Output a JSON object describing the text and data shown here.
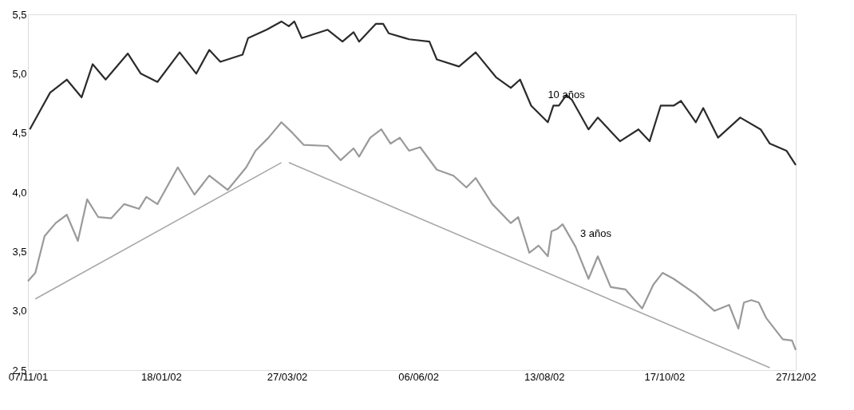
{
  "chart_data": {
    "type": "line",
    "xlim": [
      "2001-11-07",
      "2002-12-27"
    ],
    "xticks": [
      {
        "value": "2001-11-07",
        "label": "07/11/01"
      },
      {
        "value": "2002-01-18",
        "label": "18/01/02"
      },
      {
        "value": "2002-03-27",
        "label": "27/03/02"
      },
      {
        "value": "2002-06-06",
        "label": "06/06/02"
      },
      {
        "value": "2002-08-13",
        "label": "13/08/02"
      },
      {
        "value": "2002-10-17",
        "label": "17/10/02"
      },
      {
        "value": "2002-12-27",
        "label": "27/12/02"
      }
    ],
    "ylim": [
      2.5,
      5.5
    ],
    "yticks": [
      {
        "value": 2.5,
        "label": "2,5"
      },
      {
        "value": 3.0,
        "label": "3,0"
      },
      {
        "value": 3.5,
        "label": "3,5"
      },
      {
        "value": 4.0,
        "label": "4,0"
      },
      {
        "value": 4.5,
        "label": "4,5"
      },
      {
        "value": 5.0,
        "label": "5,0"
      },
      {
        "value": 5.5,
        "label": "5,5"
      }
    ],
    "grid": false,
    "marker": "none",
    "line_style": "solid",
    "series": [
      {
        "name": "10 años",
        "color": "#2b2b2b",
        "x": [
          "2001-11-08",
          "2001-11-14",
          "2001-11-19",
          "2001-11-28",
          "2001-12-06",
          "2001-12-12",
          "2001-12-19",
          "2001-12-31",
          "2002-01-07",
          "2002-01-16",
          "2002-01-28",
          "2002-02-06",
          "2002-02-13",
          "2002-02-19",
          "2002-03-03",
          "2002-03-06",
          "2002-03-16",
          "2002-03-24",
          "2002-03-28",
          "2002-03-31",
          "2002-04-04",
          "2002-04-18",
          "2002-04-26",
          "2002-05-02",
          "2002-05-05",
          "2002-05-14",
          "2002-05-18",
          "2002-05-21",
          "2002-06-01",
          "2002-06-12",
          "2002-06-16",
          "2002-06-28",
          "2002-07-07",
          "2002-07-18",
          "2002-07-26",
          "2002-07-31",
          "2002-08-06",
          "2002-08-15",
          "2002-08-18",
          "2002-08-21",
          "2002-08-25",
          "2002-08-28",
          "2002-09-06",
          "2002-09-11",
          "2002-09-23",
          "2002-10-03",
          "2002-10-09",
          "2002-10-15",
          "2002-10-22",
          "2002-10-26",
          "2002-11-03",
          "2002-11-07",
          "2002-11-15",
          "2002-11-27",
          "2002-12-08",
          "2002-12-13",
          "2002-12-22",
          "2002-12-27"
        ],
        "values": [
          4.53,
          4.7,
          4.84,
          4.95,
          4.8,
          5.08,
          4.95,
          5.17,
          5.0,
          4.93,
          5.18,
          5.0,
          5.2,
          5.1,
          5.16,
          5.3,
          5.37,
          5.44,
          5.4,
          5.44,
          5.3,
          5.37,
          5.27,
          5.35,
          5.27,
          5.42,
          5.42,
          5.34,
          5.29,
          5.27,
          5.12,
          5.06,
          5.18,
          4.97,
          4.88,
          4.95,
          4.73,
          4.59,
          4.73,
          4.73,
          4.82,
          4.78,
          4.53,
          4.63,
          4.43,
          4.53,
          4.43,
          4.73,
          4.73,
          4.77,
          4.59,
          4.71,
          4.46,
          4.63,
          4.53,
          4.41,
          4.35,
          4.23
        ]
      },
      {
        "name": "3 años",
        "color": "#9a9a9a",
        "x": [
          "2001-11-07",
          "2001-11-11",
          "2001-11-16",
          "2001-11-22",
          "2001-11-28",
          "2001-12-04",
          "2001-12-09",
          "2001-12-15",
          "2001-12-22",
          "2001-12-29",
          "2002-01-06",
          "2002-01-10",
          "2002-01-16",
          "2002-01-27",
          "2002-02-05",
          "2002-02-13",
          "2002-02-23",
          "2002-03-05",
          "2002-03-10",
          "2002-03-17",
          "2002-03-24",
          "2002-03-30",
          "2002-04-05",
          "2002-04-18",
          "2002-04-25",
          "2002-05-02",
          "2002-05-05",
          "2002-05-11",
          "2002-05-17",
          "2002-05-22",
          "2002-05-27",
          "2002-06-01",
          "2002-06-07",
          "2002-06-16",
          "2002-06-25",
          "2002-07-02",
          "2002-07-07",
          "2002-07-16",
          "2002-07-26",
          "2002-07-30",
          "2002-08-05",
          "2002-08-10",
          "2002-08-15",
          "2002-08-17",
          "2002-08-20",
          "2002-08-23",
          "2002-08-30",
          "2002-09-06",
          "2002-09-11",
          "2002-09-18",
          "2002-09-26",
          "2002-10-05",
          "2002-10-11",
          "2002-10-16",
          "2002-10-22",
          "2002-11-03",
          "2002-11-13",
          "2002-11-21",
          "2002-11-26",
          "2002-11-29",
          "2002-12-03",
          "2002-12-07",
          "2002-12-11",
          "2002-12-20",
          "2002-12-25",
          "2002-12-27"
        ],
        "values": [
          3.25,
          3.32,
          3.63,
          3.74,
          3.81,
          3.59,
          3.94,
          3.79,
          3.78,
          3.9,
          3.86,
          3.96,
          3.9,
          4.21,
          3.98,
          4.14,
          4.02,
          4.21,
          4.35,
          4.46,
          4.59,
          4.5,
          4.4,
          4.39,
          4.27,
          4.37,
          4.3,
          4.46,
          4.53,
          4.41,
          4.46,
          4.35,
          4.38,
          4.19,
          4.14,
          4.04,
          4.12,
          3.9,
          3.74,
          3.79,
          3.49,
          3.55,
          3.46,
          3.67,
          3.69,
          3.73,
          3.54,
          3.27,
          3.46,
          3.2,
          3.18,
          3.02,
          3.22,
          3.32,
          3.27,
          3.14,
          3.0,
          3.05,
          2.85,
          3.07,
          3.09,
          3.07,
          2.94,
          2.76,
          2.75,
          2.67
        ]
      },
      {
        "type": "line",
        "color": "#a8a8a8",
        "x": [
          "2001-11-11",
          "2002-03-24"
        ],
        "values": [
          3.1,
          4.25
        ]
      },
      {
        "type": "line",
        "color": "#a8a8a8",
        "x": [
          "2002-03-28",
          "2002-12-13"
        ],
        "values": [
          4.25,
          2.52
        ]
      }
    ]
  }
}
